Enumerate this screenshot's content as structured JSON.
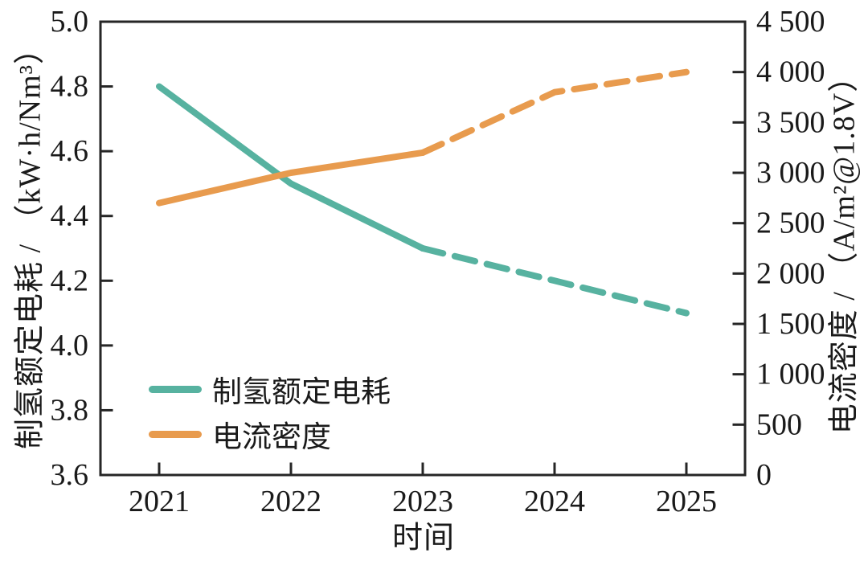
{
  "chart_data": {
    "type": "line",
    "title": "",
    "x_axis": {
      "label": "时间",
      "categories": [
        "2021",
        "2022",
        "2023",
        "2024",
        "2025"
      ]
    },
    "left_axis": {
      "label": "制氢额定电耗 / （kW·h/Nm³）",
      "min": 3.6,
      "max": 5.0,
      "step": 0.2,
      "tick_labels": [
        "5.0",
        "4.8",
        "4.6",
        "4.4",
        "4.2",
        "4.0",
        "3.8",
        "3.6"
      ]
    },
    "right_axis": {
      "label": "电流密度 / （A/m²@1.8V）",
      "min": 0,
      "max": 4500,
      "step": 500,
      "tick_labels": [
        "4 500",
        "4 000",
        "3 500",
        "3 000",
        "2 500",
        "2 000",
        "1 500",
        "1 000",
        "500",
        "0"
      ]
    },
    "series": [
      {
        "name": "制氢额定电耗",
        "axis": "left",
        "color": "#57b2a0",
        "values": [
          4.8,
          4.5,
          4.3,
          4.2,
          4.1
        ],
        "dashed_from_index": 2,
        "line_style": "solid 2021-2023, dashed 2023-2025"
      },
      {
        "name": "电流密度",
        "axis": "right",
        "color": "#e89b4e",
        "values": [
          2700,
          3000,
          3200,
          3800,
          4000
        ],
        "dashed_from_index": 2,
        "line_style": "solid 2021-2023, dashed 2023-2025"
      }
    ],
    "legend": {
      "position": "lower left",
      "entries": [
        "制氢额定电耗",
        "电流密度"
      ]
    },
    "grid": "off"
  },
  "colors": {
    "teal": "#57b2a0",
    "orange": "#e89b4e",
    "axis": "#262626",
    "text": "#1a1a1a",
    "background": "#ffffff"
  }
}
